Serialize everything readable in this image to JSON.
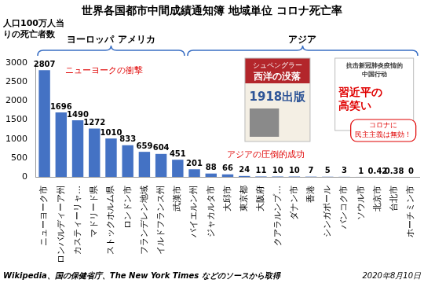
{
  "chart_data": {
    "type": "bar",
    "title": "世界各国都市中間成績通知簿 地域単位 コロナ死亡率",
    "y_label": [
      "人口100万人当",
      "りの死亡者数"
    ],
    "regions": [
      "ヨーロッパ アメリカ",
      "アジア"
    ],
    "categories": [
      "ニューヨーク市",
      "ロンバルディーア州",
      "カスティーリャ…",
      "マドリード県",
      "ストックホルム県",
      "ロンドン市",
      "フランデレン地域",
      "イルドフランス州",
      "武漢市",
      "バイエルン州",
      "ジャカルタ市",
      "大邱市",
      "東京都",
      "大阪府",
      "クアラルンプ…",
      "ダナン市",
      "香港",
      "シンガポール",
      "バンコク市",
      "ソウル市",
      "北京市",
      "台北市",
      "ホーチミン市"
    ],
    "values": [
      2807,
      1696,
      1490,
      1272,
      1010,
      833,
      659,
      604,
      451,
      201,
      88,
      66,
      24,
      11,
      10,
      10,
      7,
      5,
      3,
      1,
      0.42,
      0.38,
      0
    ],
    "color": "#4472c4",
    "ylim": [
      0,
      3000
    ],
    "yticks": [
      0,
      500,
      1000,
      1500,
      2000,
      2500,
      3000
    ],
    "grid": false,
    "data_labels": true,
    "annotations": {
      "west": "ニューヨークの衝撃",
      "east": "アジアの圧倒的成功",
      "book_author": "シュペングラー",
      "book_title": "西洋の没落",
      "book_year": "1918出版",
      "cn_book": [
        "抗击新冠肺炎疫情的",
        "中国行动"
      ],
      "xi": [
        "習近平の",
        "高笑い"
      ],
      "bubble": [
        "コロナに",
        "民主主義は無効！"
      ]
    },
    "source": "Wikipedia、国の保健省庁、The New York Times などのソースから取得",
    "date": "2020年8月10日"
  }
}
